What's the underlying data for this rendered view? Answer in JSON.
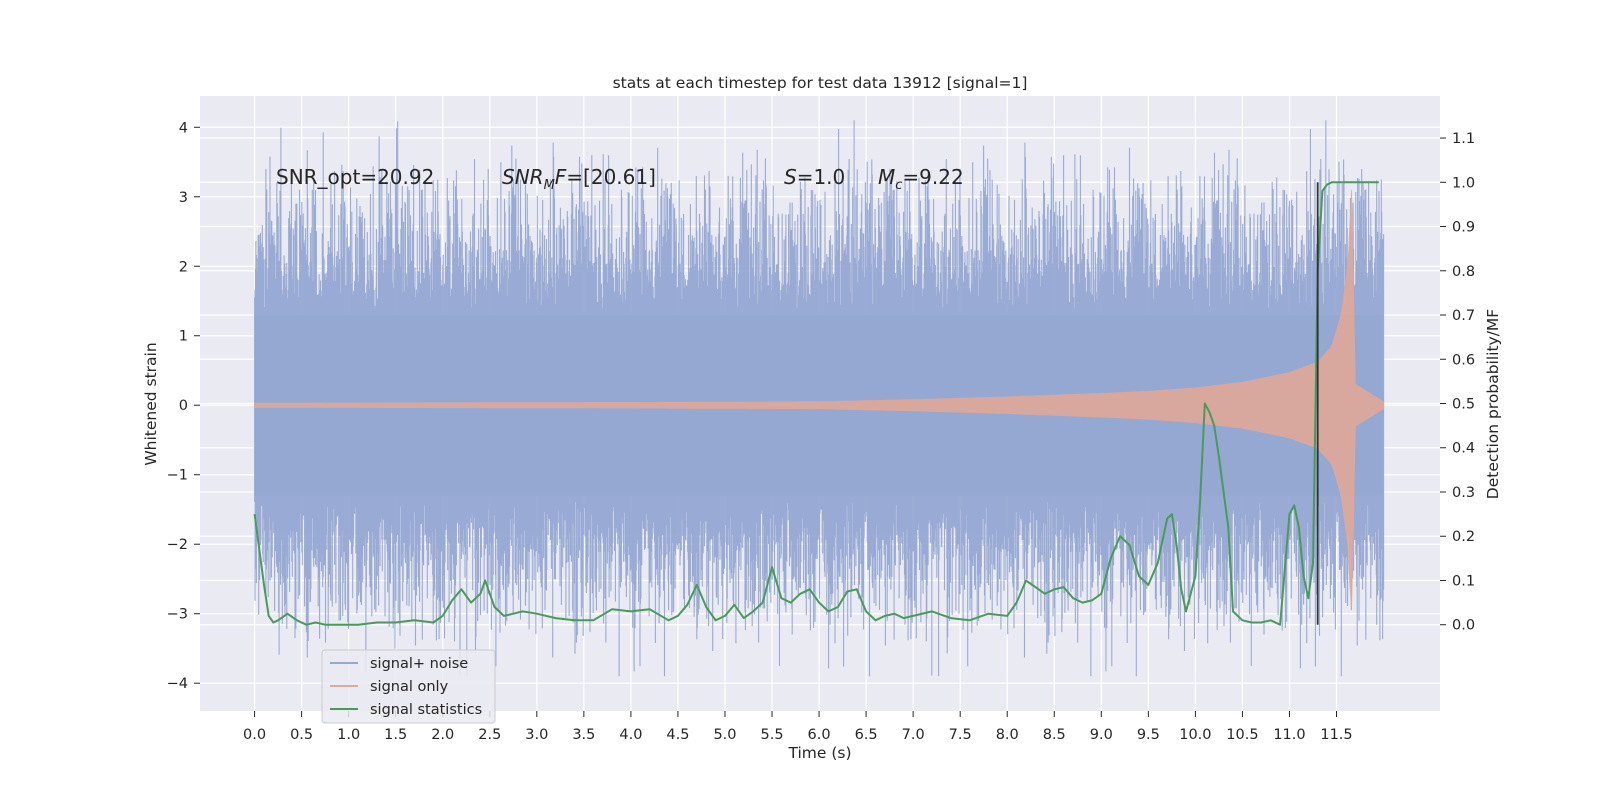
{
  "chart_data": {
    "type": "line",
    "title": "stats at each timestep for test data 13912 [signal=1]",
    "xlabel": "Time (s)",
    "ylabel": "Whitened strain",
    "ylabel_right": "Detection probability/MF",
    "xlim": [
      -0.58,
      12.6
    ],
    "ylim": [
      -4.4,
      4.45
    ],
    "ylim_right": [
      -0.195,
      1.195
    ],
    "x_ticks": [
      0.0,
      0.5,
      1.0,
      1.5,
      2.0,
      2.5,
      3.0,
      3.5,
      4.0,
      4.5,
      5.0,
      5.5,
      6.0,
      6.5,
      7.0,
      7.5,
      8.0,
      8.5,
      9.0,
      9.5,
      10.0,
      10.5,
      11.0,
      11.5
    ],
    "x_tick_labels": [
      "0.0",
      "0.5",
      "1.0",
      "1.5",
      "2.0",
      "2.5",
      "3.0",
      "3.5",
      "4.0",
      "4.5",
      "5.0",
      "5.5",
      "6.0",
      "6.5",
      "7.0",
      "7.5",
      "8.0",
      "8.5",
      "9.0",
      "9.5",
      "10.0",
      "10.5",
      "11.0",
      "11.5"
    ],
    "y_ticks": [
      -4,
      -3,
      -2,
      -1,
      0,
      1,
      2,
      3,
      4
    ],
    "y_tick_labels": [
      "−4",
      "−3",
      "−2",
      "−1",
      "0",
      "1",
      "2",
      "3",
      "4"
    ],
    "y_ticks_right": [
      0.0,
      0.1,
      0.2,
      0.3,
      0.4,
      0.5,
      0.6,
      0.7,
      0.8,
      0.9,
      1.0,
      1.1
    ],
    "y_tick_labels_right": [
      "0.0",
      "0.1",
      "0.2",
      "0.3",
      "0.4",
      "0.5",
      "0.6",
      "0.7",
      "0.8",
      "0.9",
      "1.0",
      "1.1"
    ],
    "grid": true,
    "legend_position": "lower-left",
    "annotations": [
      "SNR_opt=20.92",
      "SNR_MF=[20.61]",
      "S=1.0",
      "M_c=9.22"
    ],
    "vertical_line_x": 11.3,
    "series": [
      {
        "name": "signal+ noise",
        "color": "#95a8d2",
        "axis": "left",
        "x_range": [
          0.0,
          12.0
        ],
        "amplitude_scale": 1.0,
        "min": -3.9,
        "max": 4.1
      },
      {
        "name": "signal only",
        "color": "#e0a999",
        "axis": "left",
        "x_range": [
          0.0,
          12.0
        ],
        "envelope": {
          "x": [
            0.0,
            4.0,
            6.0,
            7.0,
            8.0,
            9.0,
            9.5,
            10.0,
            10.5,
            11.0,
            11.3,
            11.45,
            11.55,
            11.62,
            11.66,
            11.7,
            12.0
          ],
          "amplitude": [
            0.03,
            0.04,
            0.05,
            0.08,
            0.12,
            0.17,
            0.2,
            0.25,
            0.33,
            0.47,
            0.62,
            0.85,
            1.3,
            2.0,
            3.1,
            0.3,
            0.05
          ]
        },
        "min": -2.95,
        "max": 3.15
      },
      {
        "name": "signal statistics",
        "color": "#4a9a5c",
        "axis": "right",
        "x": [
          0.0,
          0.05,
          0.1,
          0.15,
          0.2,
          0.25,
          0.35,
          0.45,
          0.55,
          0.65,
          0.75,
          0.9,
          1.1,
          1.3,
          1.5,
          1.7,
          1.9,
          2.0,
          2.1,
          2.2,
          2.3,
          2.4,
          2.45,
          2.55,
          2.65,
          2.75,
          2.85,
          3.0,
          3.2,
          3.4,
          3.6,
          3.8,
          4.0,
          4.2,
          4.4,
          4.5,
          4.6,
          4.7,
          4.8,
          4.9,
          5.0,
          5.1,
          5.2,
          5.3,
          5.4,
          5.5,
          5.6,
          5.7,
          5.8,
          5.9,
          6.0,
          6.1,
          6.2,
          6.3,
          6.4,
          6.5,
          6.6,
          6.7,
          6.8,
          6.9,
          7.0,
          7.2,
          7.4,
          7.6,
          7.8,
          8.0,
          8.1,
          8.2,
          8.3,
          8.4,
          8.5,
          8.6,
          8.7,
          8.8,
          8.9,
          9.0,
          9.1,
          9.2,
          9.3,
          9.4,
          9.5,
          9.6,
          9.7,
          9.75,
          9.8,
          9.85,
          9.9,
          10.0,
          10.05,
          10.1,
          10.15,
          10.2,
          10.25,
          10.3,
          10.35,
          10.4,
          10.5,
          10.6,
          10.7,
          10.8,
          10.9,
          11.0,
          11.05,
          11.1,
          11.15,
          11.2,
          11.25,
          11.3,
          11.35,
          11.4,
          11.45,
          11.5,
          11.6,
          11.7,
          11.8,
          11.9,
          11.95
        ],
        "y": [
          0.25,
          0.17,
          0.09,
          0.02,
          0.005,
          0.01,
          0.025,
          0.01,
          0.0,
          0.005,
          0.0,
          0.0,
          0.0,
          0.005,
          0.005,
          0.01,
          0.005,
          0.02,
          0.055,
          0.08,
          0.05,
          0.07,
          0.1,
          0.04,
          0.02,
          0.025,
          0.03,
          0.025,
          0.015,
          0.01,
          0.01,
          0.035,
          0.03,
          0.035,
          0.01,
          0.02,
          0.045,
          0.09,
          0.04,
          0.01,
          0.02,
          0.045,
          0.015,
          0.03,
          0.05,
          0.13,
          0.06,
          0.05,
          0.07,
          0.08,
          0.05,
          0.03,
          0.04,
          0.075,
          0.08,
          0.03,
          0.01,
          0.02,
          0.025,
          0.015,
          0.02,
          0.03,
          0.015,
          0.01,
          0.025,
          0.02,
          0.05,
          0.1,
          0.085,
          0.07,
          0.08,
          0.085,
          0.06,
          0.05,
          0.055,
          0.07,
          0.15,
          0.2,
          0.18,
          0.11,
          0.09,
          0.14,
          0.24,
          0.25,
          0.18,
          0.08,
          0.03,
          0.11,
          0.28,
          0.5,
          0.48,
          0.45,
          0.38,
          0.3,
          0.22,
          0.03,
          0.01,
          0.005,
          0.005,
          0.01,
          0.0,
          0.25,
          0.27,
          0.22,
          0.11,
          0.06,
          0.14,
          0.8,
          0.98,
          0.995,
          1.0,
          1.0,
          1.0,
          1.0,
          1.0,
          1.0,
          1.0
        ]
      }
    ]
  }
}
